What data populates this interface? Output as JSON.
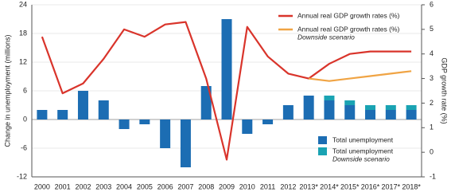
{
  "chart_data": {
    "type": "bar-line",
    "categories": [
      "2000",
      "2001",
      "2002",
      "2003",
      "2004",
      "2005",
      "2006",
      "2007",
      "2008",
      "2009",
      "2010",
      "2011",
      "2012",
      "2013*",
      "2014*",
      "2015*",
      "2016*",
      "2017*",
      "2018*"
    ],
    "ylabel": "Change in unemployment (millions)",
    "y2label": "GDP growth rate (%)",
    "ylim": [
      -12,
      24
    ],
    "yticks": [
      -12,
      -6,
      0,
      6,
      12,
      18,
      24
    ],
    "y2lim": [
      -1,
      6
    ],
    "y2ticks": [
      -1,
      0,
      1,
      2,
      3,
      4,
      5,
      6
    ],
    "grid": true,
    "series": [
      {
        "name": "Total unemployment",
        "type": "bar",
        "color": "#1c6db3",
        "values": [
          2,
          2,
          6,
          4,
          -2,
          -1,
          -6,
          -10,
          7,
          21,
          -3,
          -1,
          3,
          5,
          4,
          3,
          2,
          2,
          2
        ]
      },
      {
        "name": "Total unemployment",
        "note": "Downside scenario",
        "type": "bar",
        "color": "#1aa3b3",
        "values": [
          null,
          null,
          null,
          null,
          null,
          null,
          null,
          null,
          null,
          null,
          null,
          null,
          null,
          null,
          1,
          1,
          1,
          1,
          1
        ]
      },
      {
        "name": "Annual real GDP growth rates (%)",
        "type": "line",
        "axis": "y2",
        "color": "#d9342b",
        "values": [
          4.7,
          2.4,
          2.8,
          3.8,
          5.0,
          4.7,
          5.2,
          5.3,
          3.0,
          -0.3,
          5.1,
          3.9,
          3.2,
          3.0,
          3.6,
          4.0,
          4.1,
          4.1,
          4.1
        ]
      },
      {
        "name": "Annual real GDP growth rates (%)",
        "note": "Downside scenario",
        "type": "line",
        "axis": "y2",
        "color": "#f0a444",
        "values": [
          null,
          null,
          null,
          null,
          null,
          null,
          null,
          null,
          null,
          null,
          null,
          null,
          null,
          3.0,
          2.9,
          3.0,
          3.1,
          3.2,
          3.3
        ]
      }
    ]
  }
}
